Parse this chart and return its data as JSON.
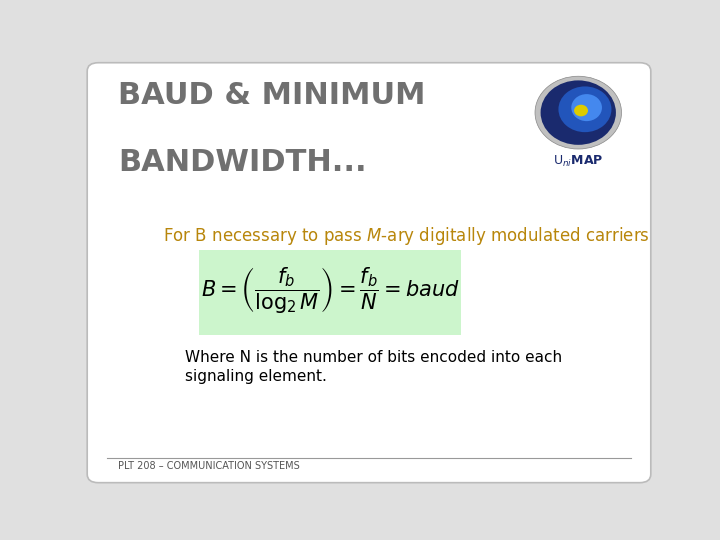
{
  "title_line1": "BAUD & MINIMUM",
  "title_line2": "BANDWIDTH...",
  "title_color": "#707070",
  "title_fontsize": 22,
  "subtitle_text": "For B necessary to pass $\\mathit{M}$-ary digitally modulated carriers",
  "subtitle_color": "#B8860B",
  "subtitle_fontsize": 12,
  "formula": "$B = \\left(\\dfrac{f_b}{\\log_2 M}\\right) = \\dfrac{f_b}{N} = baud$",
  "formula_fontsize": 15,
  "formula_box_color": "#ccf5cc",
  "body_text_line1": "Where N is the number of bits encoded into each",
  "body_text_line2": "signaling element.",
  "body_fontsize": 11,
  "body_color": "#000000",
  "footer_text": "PLT 208 – COMMUNICATION SYSTEMS",
  "footer_fontsize": 7,
  "background_color": "#ffffff",
  "border_color": "#bbbbbb",
  "fig_bg": "#e0e0e0"
}
